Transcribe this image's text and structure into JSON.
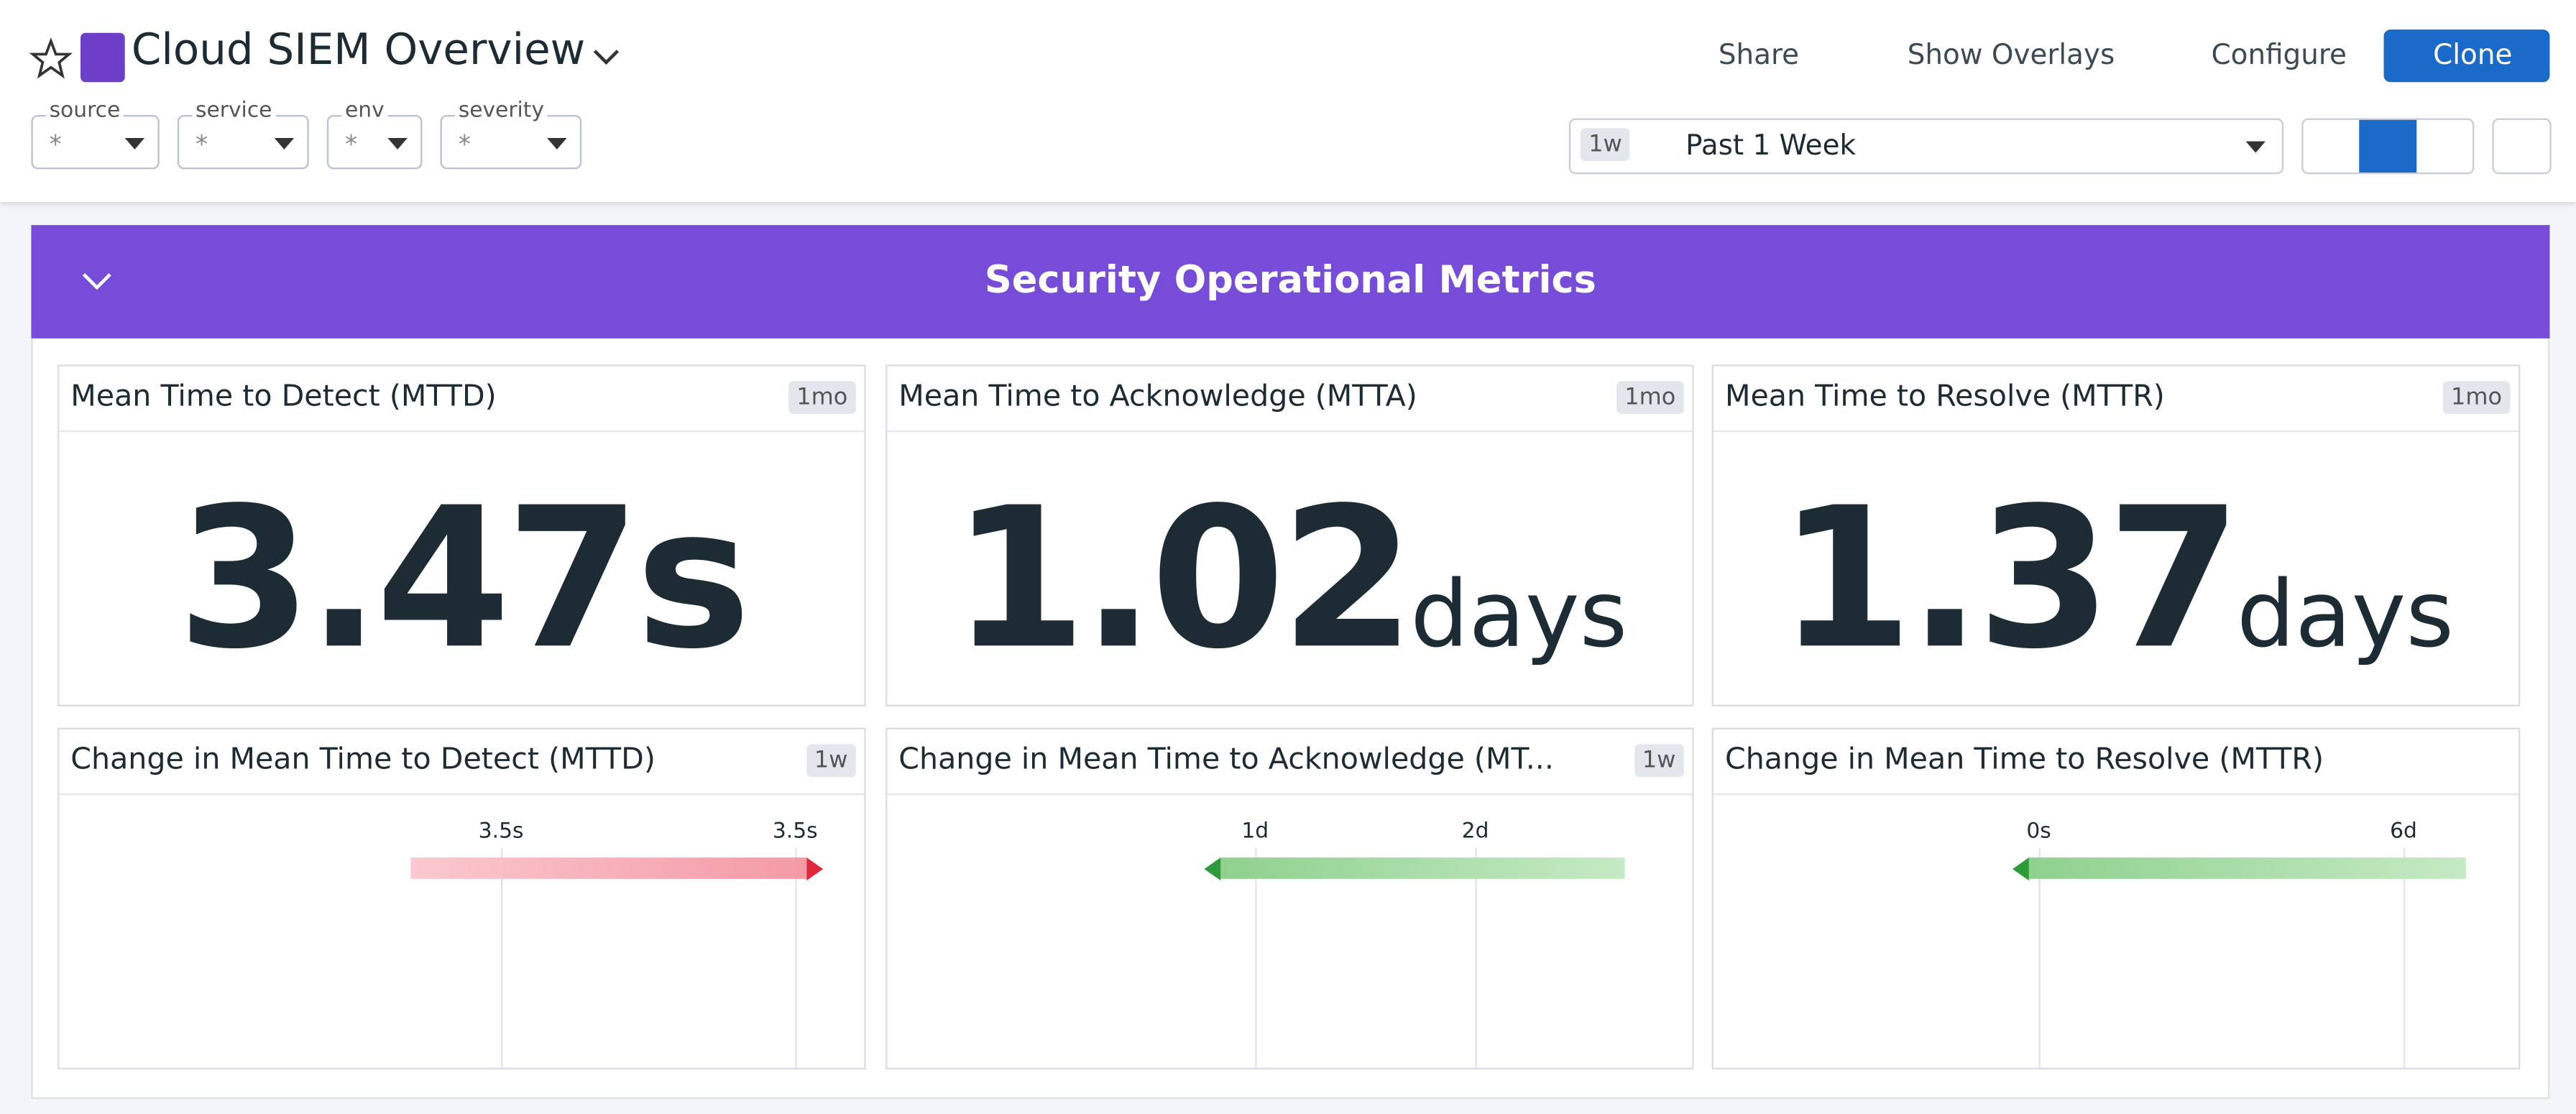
{
  "header": {
    "title": "Cloud SIEM Overview",
    "actions": [
      "Share",
      "Show Overlays",
      "Configure",
      "Clone"
    ]
  },
  "filters": [
    {
      "label": "source",
      "value": "*"
    },
    {
      "label": "service",
      "value": "*"
    },
    {
      "label": "env",
      "value": "*"
    },
    {
      "label": "severity",
      "value": "*"
    }
  ],
  "time": {
    "badge": "1w",
    "label": "Past 1 Week"
  },
  "section": {
    "title": "Security Operational Metrics"
  },
  "query_values": [
    {
      "title": "Mean Time to Detect (MTTD)",
      "badge": "1mo",
      "value": "3.47",
      "unit": "s"
    },
    {
      "title": "Mean Time to Acknowledge (MTTA)",
      "badge": "1mo",
      "value": "1.02",
      "unit": "days"
    },
    {
      "title": "Mean Time to Resolve (MTTR)",
      "badge": "1mo",
      "value": "1.37",
      "unit": "days"
    }
  ],
  "changes": [
    {
      "title": "Change in Mean Time to Detect (MTTD)",
      "badge": "1w",
      "ticks": [
        "3.5s",
        "3.5s"
      ]
    },
    {
      "title": "Change in Mean Time to Acknowledge (MT...",
      "badge": "1w",
      "ticks": [
        "1d",
        "2d"
      ]
    },
    {
      "title": "Change in Mean Time to Resolve (MTTR)",
      "ticks": [
        "0s",
        "6d"
      ]
    }
  ]
}
